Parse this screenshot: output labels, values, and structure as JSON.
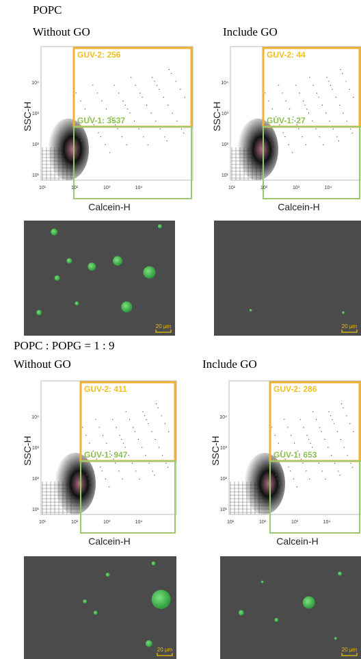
{
  "sections": [
    {
      "title": "POPC",
      "panels": [
        {
          "label": "Without GO",
          "plot": {
            "y_label": "SSC-H",
            "x_label": "Calcein-H",
            "gates": [
              "GUV-2: 256",
              "GUV-1: 3537"
            ]
          },
          "image": {
            "scale_bar": "20 µm"
          }
        },
        {
          "label": "Include GO",
          "plot": {
            "y_label": "SSC-H",
            "x_label": "Calcein-H",
            "gates": [
              "GUV-2: 44",
              "GUV-1: 27"
            ]
          },
          "image": {
            "scale_bar": "20 µm"
          }
        }
      ]
    },
    {
      "title": "POPC : POPG = 1 : 9",
      "panels": [
        {
          "label": "Without GO",
          "plot": {
            "y_label": "SSC-H",
            "x_label": "Calcein-H",
            "gates": [
              "GUV-2: 411",
              "GUV-1: 947"
            ]
          },
          "image": {
            "scale_bar": "20 µm"
          }
        },
        {
          "label": "Include GO",
          "plot": {
            "y_label": "SSC-H",
            "x_label": "Calcein-H",
            "gates": [
              "GUV-2: 286",
              "GUV-1: 653"
            ]
          },
          "image": {
            "scale_bar": "20 µm"
          }
        }
      ]
    }
  ],
  "axis_ticks": [
    "10¹",
    "10²",
    "10³",
    "10⁴"
  ]
}
